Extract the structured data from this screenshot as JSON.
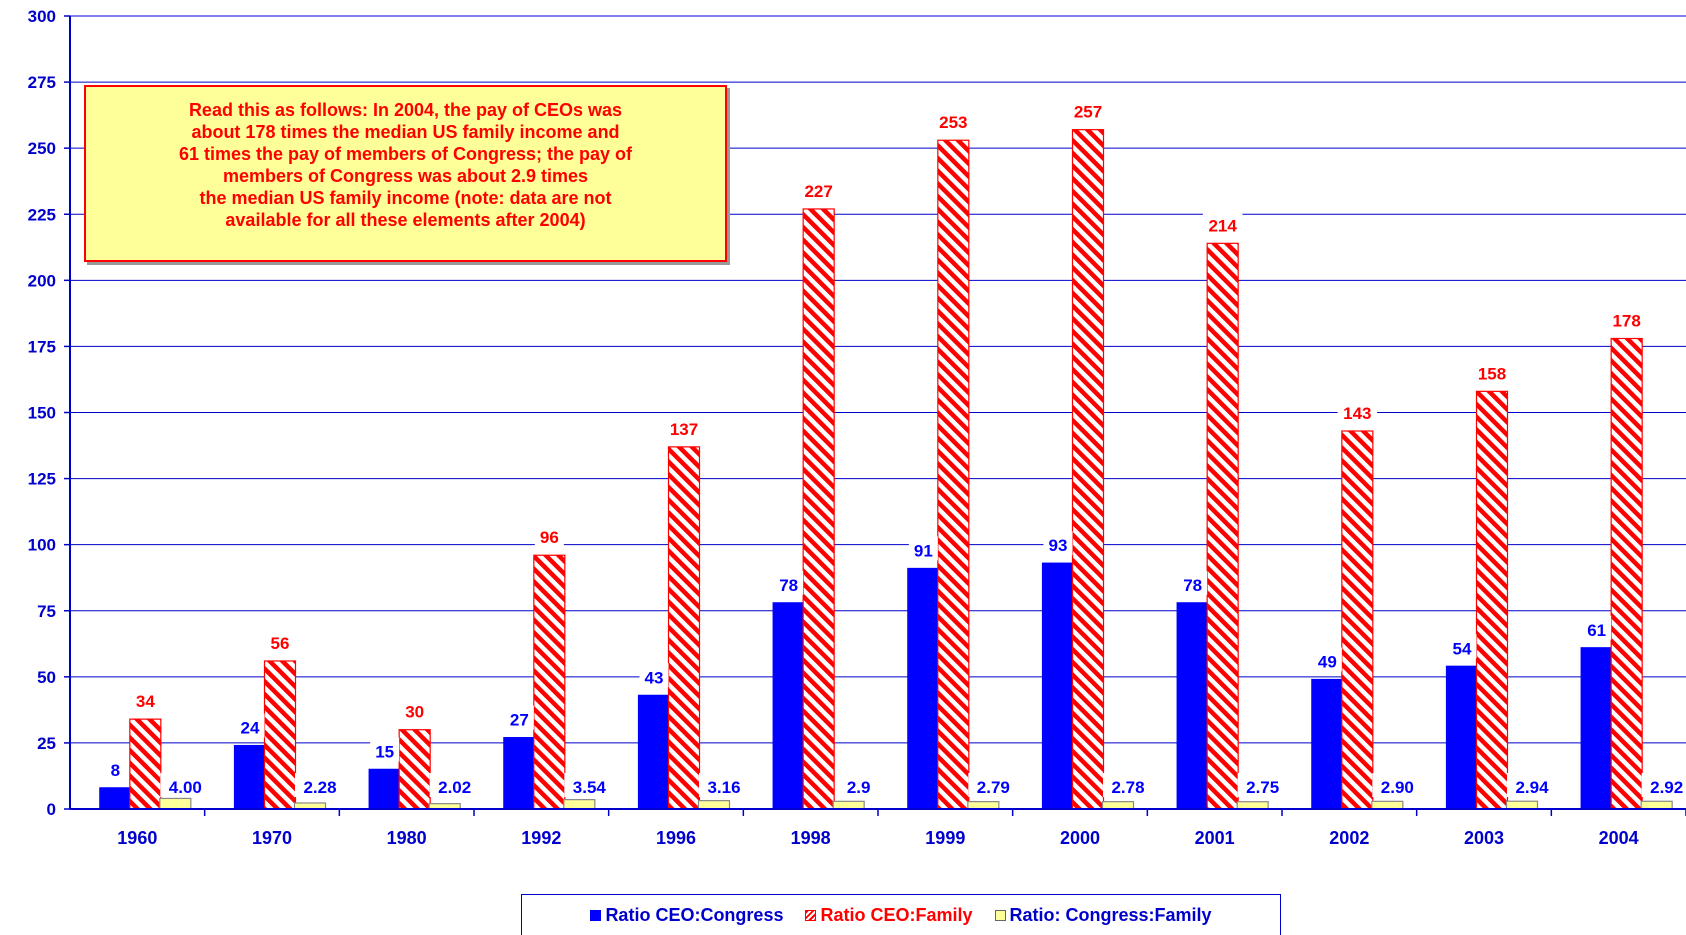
{
  "chart_data": {
    "type": "bar",
    "categories": [
      "1960",
      "1970",
      "1980",
      "1992",
      "1996",
      "1998",
      "1999",
      "2000",
      "2001",
      "2002",
      "2003",
      "2004"
    ],
    "series": [
      {
        "name": "Ratio CEO:Congress",
        "values": [
          8,
          24,
          15,
          27,
          43,
          78,
          91,
          93,
          78,
          49,
          54,
          61
        ],
        "labels": [
          "8",
          "24",
          "15",
          "27",
          "43",
          "78",
          "91",
          "93",
          "78",
          "49",
          "54",
          "61"
        ]
      },
      {
        "name": "Ratio CEO:Family",
        "values": [
          34,
          56,
          30,
          96,
          137,
          227,
          253,
          257,
          214,
          143,
          158,
          178
        ],
        "labels": [
          "34",
          "56",
          "30",
          "96",
          "137",
          "227",
          "253",
          "257",
          "214",
          "143",
          "158",
          "178"
        ]
      },
      {
        "name": "Ratio:  Congress:Family",
        "values": [
          4.0,
          2.28,
          2.02,
          3.54,
          3.16,
          2.9,
          2.79,
          2.78,
          2.75,
          2.9,
          2.94,
          2.92
        ],
        "labels": [
          "4.00",
          "2.28",
          "2.02",
          "3.54",
          "3.16",
          "2.9",
          "2.79",
          "2.78",
          "2.75",
          "2.90",
          "2.94",
          "2.92"
        ]
      }
    ],
    "yticks": [
      "0",
      "25",
      "50",
      "75",
      "100",
      "125",
      "150",
      "175",
      "200",
      "225",
      "250",
      "275",
      "300"
    ],
    "ylim": [
      0,
      300
    ],
    "grid": true,
    "legend_position": "bottom",
    "colors": {
      "ceo_congress": "#0000ff",
      "ceo_family": "#ff0000",
      "congress_family": "#ffff99",
      "axis": "#0000cc"
    }
  },
  "annotation": {
    "text": "Read this as follows:  In 2004, the pay of CEOs was\nabout 178 times the median US family  income and\n61 times the pay  of members of Congress;  the pay of\nmembers of Congress was about 2.9 times\nthe median US family income (note:  data are not\navailable for all these elements after 2004)"
  },
  "legend": {
    "items": [
      "Ratio CEO:Congress",
      "Ratio CEO:Family",
      "Ratio:  Congress:Family"
    ]
  }
}
